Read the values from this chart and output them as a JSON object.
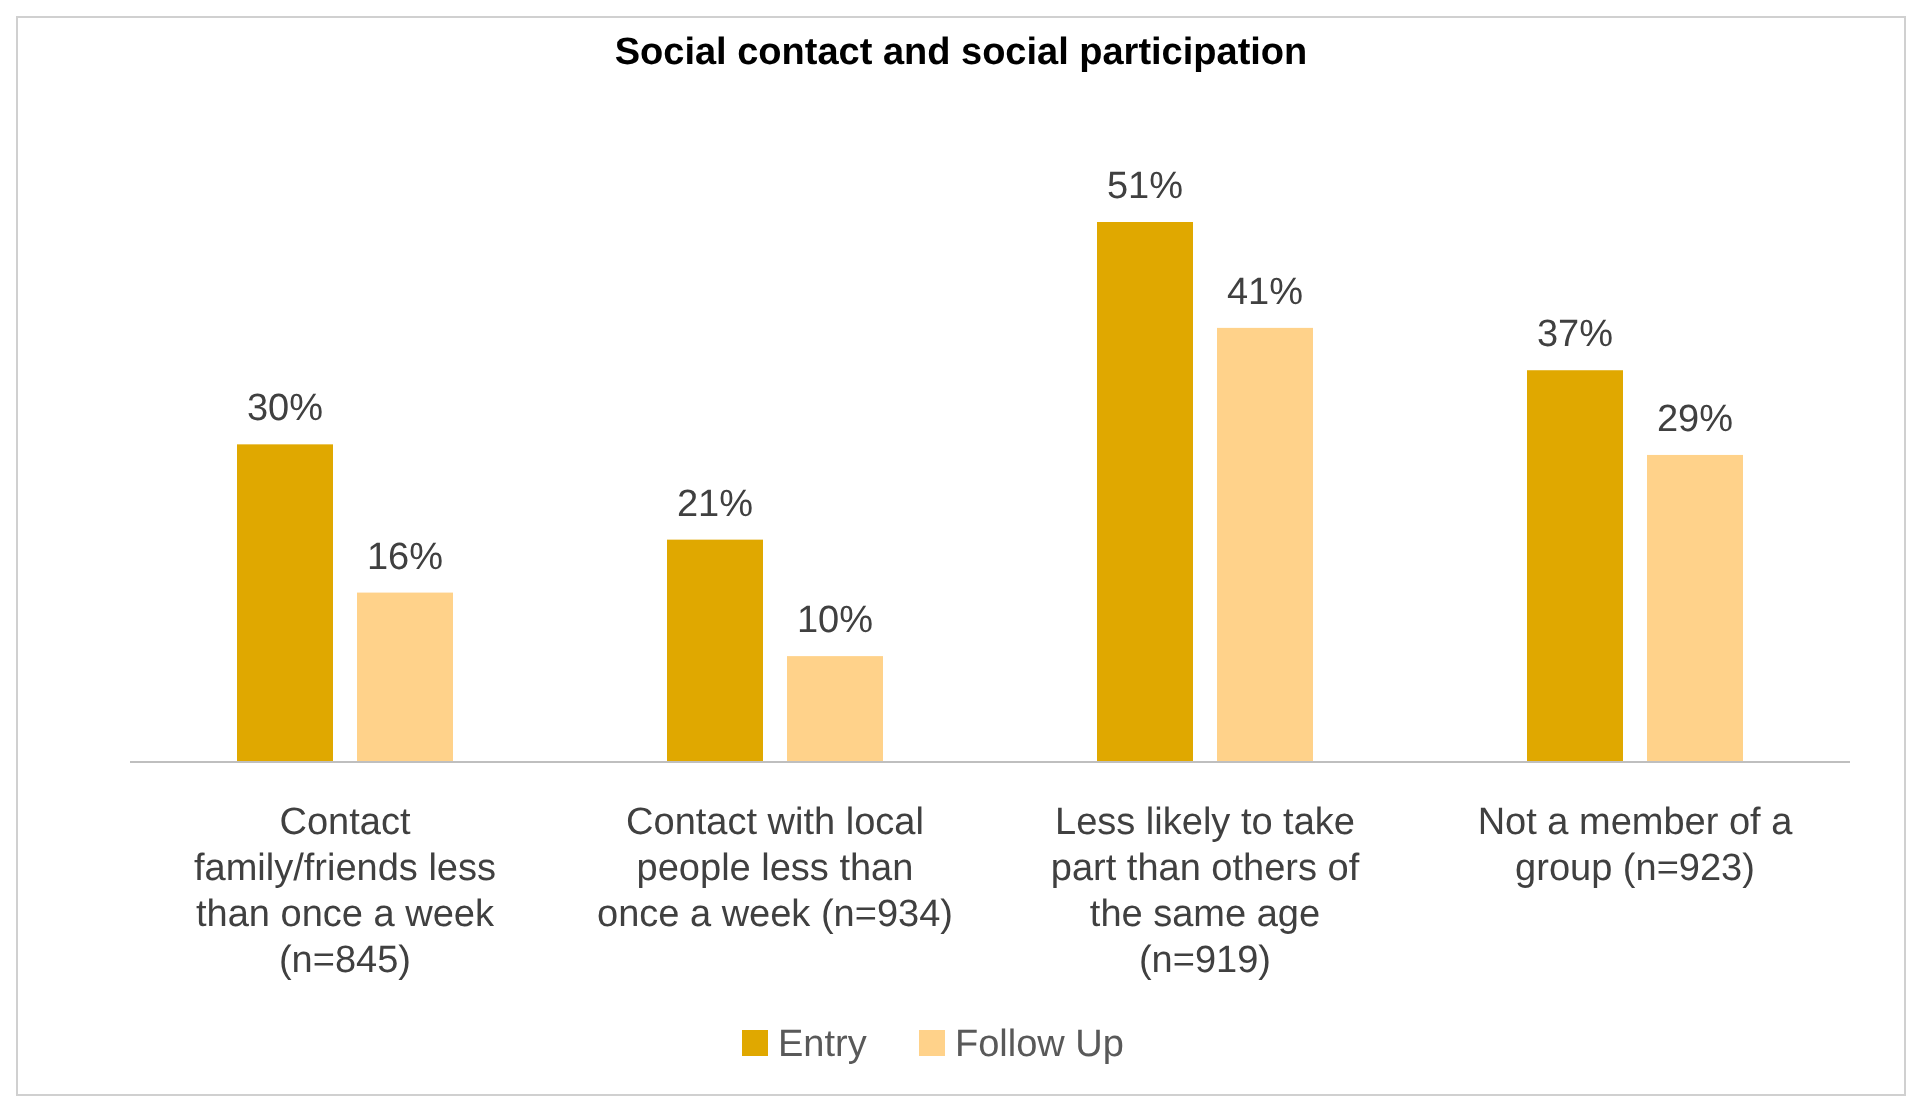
{
  "chart_data": {
    "type": "bar",
    "title": "Social contact and social participation",
    "categories": [
      "Contact family/friends less than once a week (n=845)",
      "Contact with local people less than once a week (n=934)",
      "Less likely to take part than others of the same age (n=919)",
      "Not a member of a group (n=923)"
    ],
    "series": [
      {
        "name": "Entry",
        "color": "#e0a800",
        "values": [
          30,
          21,
          51,
          37
        ],
        "value_labels": [
          "30%",
          "21%",
          "51%",
          "37%"
        ]
      },
      {
        "name": "Follow Up",
        "color": "#ffd28a",
        "values": [
          16,
          10,
          41,
          29
        ],
        "value_labels": [
          "16%",
          "10%",
          "41%",
          "29%"
        ]
      }
    ],
    "legend": "bottom",
    "relative": false
  }
}
